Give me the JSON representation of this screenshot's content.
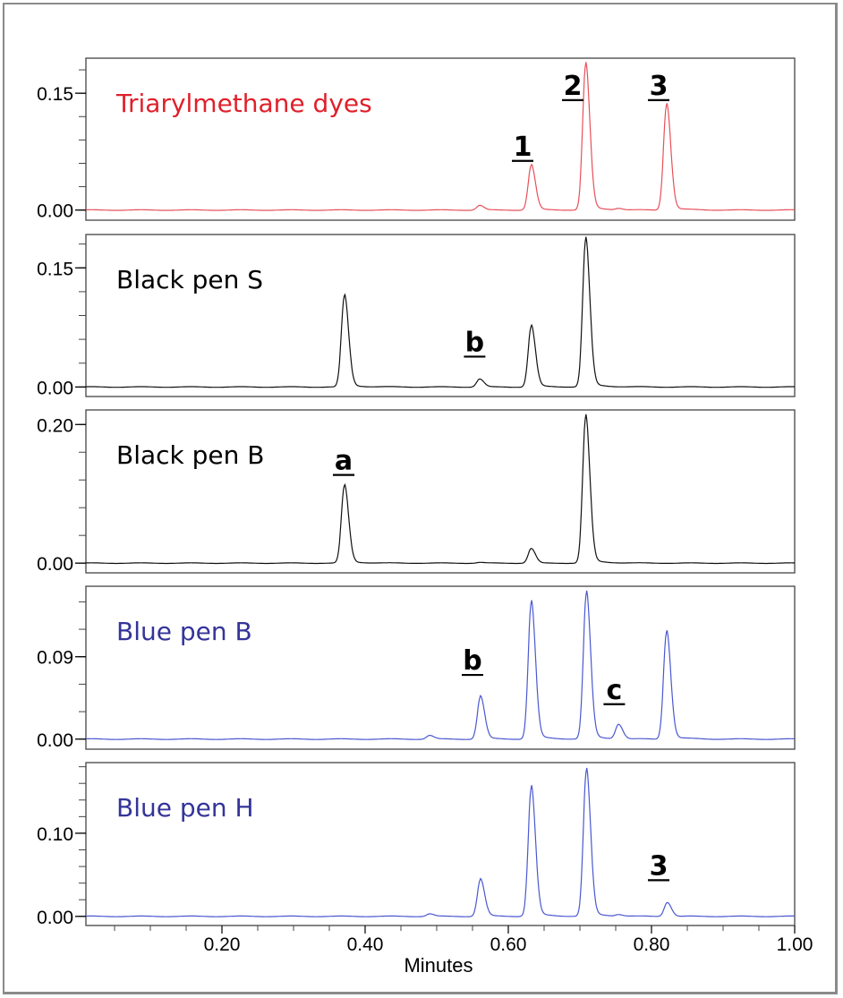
{
  "chart_data": [
    {
      "type": "line",
      "title": "Triarylmethane dyes",
      "color": "#e0202a",
      "line_color": "#e8505a",
      "ylim": [
        -0.013,
        0.195
      ],
      "yticks": [
        0.0,
        0.15
      ],
      "ytick_labels": [
        "0.00",
        "0.15"
      ],
      "minor_tick": 0.03,
      "peaks": [
        {
          "x": 0.56,
          "y": 0.006
        },
        {
          "x": 0.632,
          "y": 0.057
        },
        {
          "x": 0.708,
          "y": 0.185
        },
        {
          "x": 0.754,
          "y": 0.002
        },
        {
          "x": 0.821,
          "y": 0.135
        }
      ],
      "annotations": [
        {
          "text": "1",
          "x": 0.62,
          "y": 0.07
        },
        {
          "text": "2",
          "x": 0.69,
          "y": 0.148
        },
        {
          "text": "3",
          "x": 0.81,
          "y": 0.148
        }
      ]
    },
    {
      "type": "line",
      "title": "Black pen S",
      "color": "#000000",
      "line_color": "#111111",
      "ylim": [
        -0.012,
        0.192
      ],
      "yticks": [
        0.0,
        0.15
      ],
      "ytick_labels": [
        "0.00",
        "0.15"
      ],
      "minor_tick": 0.03,
      "peaks": [
        {
          "x": 0.371,
          "y": 0.114
        },
        {
          "x": 0.56,
          "y": 0.01
        },
        {
          "x": 0.632,
          "y": 0.076
        },
        {
          "x": 0.708,
          "y": 0.184
        }
      ],
      "annotations": [
        {
          "text": "b",
          "x": 0.553,
          "y": 0.045
        }
      ]
    },
    {
      "type": "line",
      "title": "Black pen B",
      "color": "#000000",
      "line_color": "#111111",
      "ylim": [
        -0.014,
        0.221
      ],
      "yticks": [
        0.0,
        0.2
      ],
      "ytick_labels": [
        "0.00",
        "0.20"
      ],
      "minor_tick": 0.04,
      "peaks": [
        {
          "x": 0.371,
          "y": 0.111
        },
        {
          "x": 0.56,
          "y": 0.001
        },
        {
          "x": 0.632,
          "y": 0.021
        },
        {
          "x": 0.708,
          "y": 0.209
        }
      ],
      "annotations": [
        {
          "text": "a",
          "x": 0.37,
          "y": 0.135
        }
      ]
    },
    {
      "type": "line",
      "title": "Blue pen B",
      "color": "#34349a",
      "line_color": "#4a58d0",
      "ylim": [
        -0.011,
        0.167
      ],
      "yticks": [
        0.0,
        0.09
      ],
      "ytick_labels": [
        "0.00",
        "0.09"
      ],
      "minor_tick": 0.03,
      "peaks": [
        {
          "x": 0.49,
          "y": 0.004
        },
        {
          "x": 0.561,
          "y": 0.046
        },
        {
          "x": 0.632,
          "y": 0.148
        },
        {
          "x": 0.709,
          "y": 0.158
        },
        {
          "x": 0.754,
          "y": 0.016
        },
        {
          "x": 0.821,
          "y": 0.117
        }
      ],
      "annotations": [
        {
          "text": "b",
          "x": 0.55,
          "y": 0.076
        },
        {
          "text": "c",
          "x": 0.748,
          "y": 0.044
        }
      ]
    },
    {
      "type": "line",
      "title": "Blue pen H",
      "color": "#34349a",
      "line_color": "#4a58d0",
      "ylim": [
        -0.011,
        0.185
      ],
      "yticks": [
        0.0,
        0.1
      ],
      "ytick_labels": [
        "0.00",
        "0.10"
      ],
      "minor_tick": 0.02,
      "xticks": [
        0.2,
        0.4,
        0.6,
        0.8,
        1.0
      ],
      "xtick_labels": [
        "0.20",
        "0.40",
        "0.60",
        "0.80",
        "1.00"
      ],
      "xlabel": "Minutes",
      "peaks": [
        {
          "x": 0.49,
          "y": 0.003
        },
        {
          "x": 0.561,
          "y": 0.044
        },
        {
          "x": 0.632,
          "y": 0.154
        },
        {
          "x": 0.709,
          "y": 0.174
        },
        {
          "x": 0.754,
          "y": 0.002
        },
        {
          "x": 0.822,
          "y": 0.017
        }
      ],
      "annotations": [
        {
          "text": "3",
          "x": 0.81,
          "y": 0.05
        }
      ]
    }
  ],
  "xlim": [
    0.01,
    1.0
  ],
  "x_minor_tick": 0.05
}
